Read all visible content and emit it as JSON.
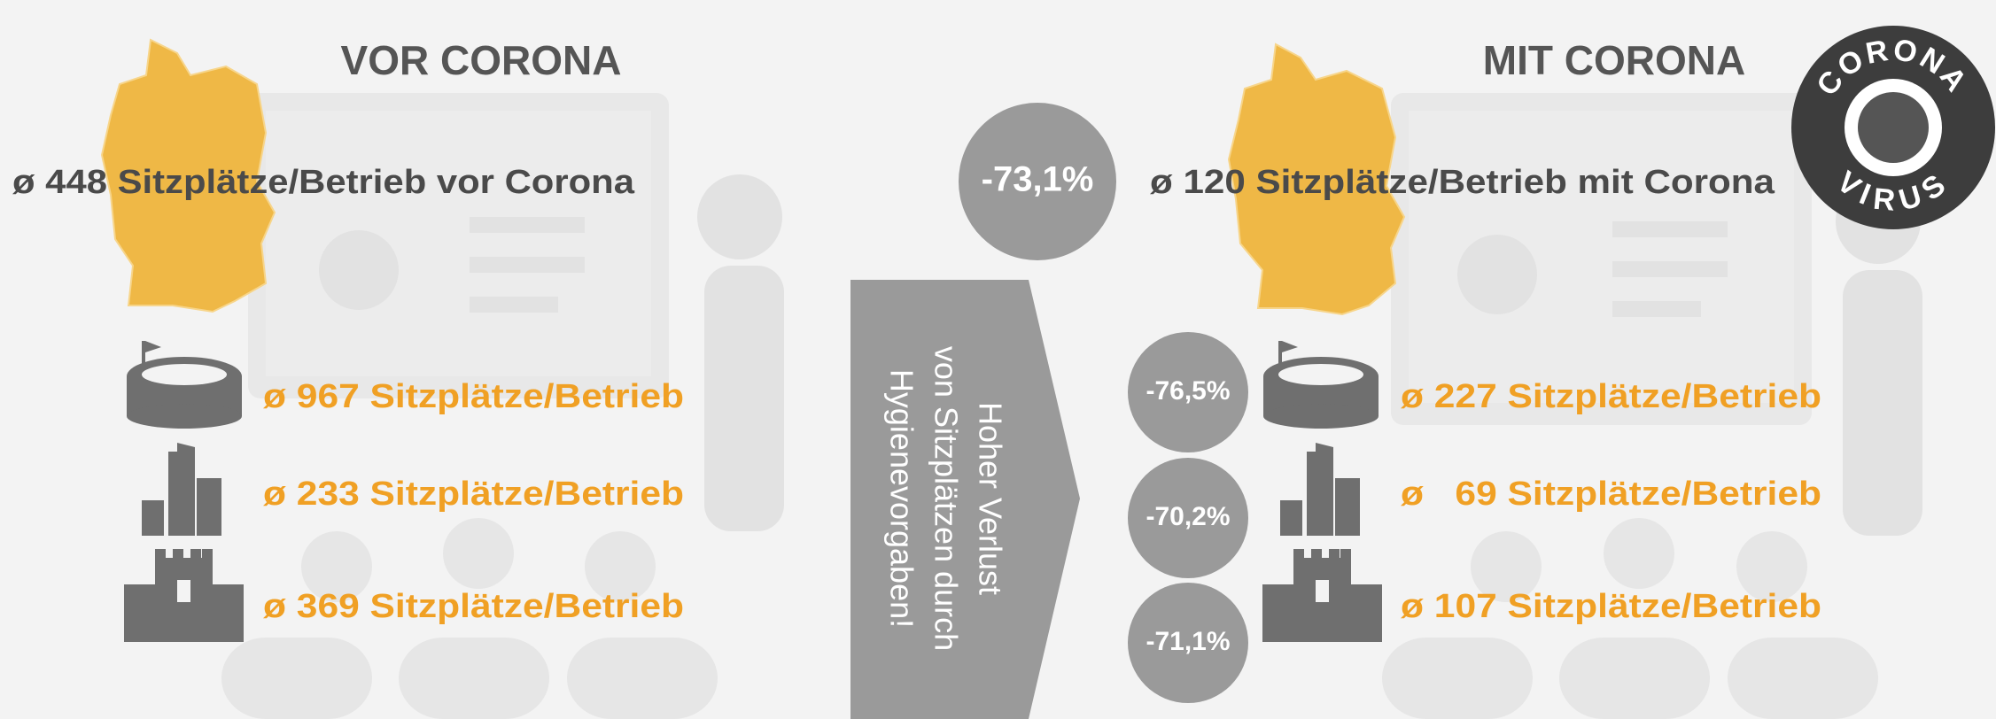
{
  "left": {
    "title": "VOR CORONA",
    "summary": "ø 448 Sitzplätze/Betrieb vor Corona",
    "rows": [
      "ø 967 Sitzplätze/Betrieb",
      "ø 233 Sitzplätze/Betrieb",
      "ø 369 Sitzplätze/Betrieb"
    ]
  },
  "center": {
    "total_change": "-73,1%",
    "arrow_text": [
      "Hoher Verlust",
      "von Sitzplätzen durch",
      "Hygienevorgaben!"
    ]
  },
  "right": {
    "title": "MIT CORONA",
    "summary": "ø 120 Sitzplätze/Betrieb mit Corona",
    "rows": [
      {
        "change": "-76,5%",
        "label": "ø 227 Sitzplätze/Betrieb"
      },
      {
        "change": "-70,2%",
        "label": "ø   69 Sitzplätze/Betrieb"
      },
      {
        "change": "-71,1%",
        "label": "ø 107 Sitzplätze/Betrieb"
      }
    ]
  },
  "badge": {
    "top": "CORONA",
    "bottom": "VIRUS"
  }
}
